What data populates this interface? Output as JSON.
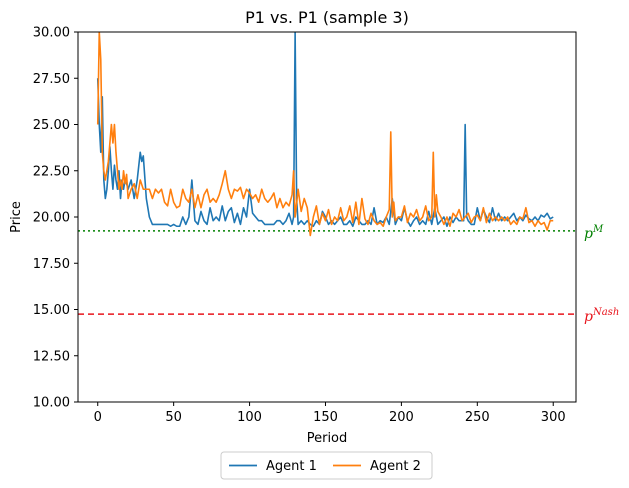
{
  "chart_data": {
    "type": "line",
    "title": "P1 vs. P1 (sample 3)",
    "xlabel": "Period",
    "ylabel": "Price",
    "xlim": [
      -13,
      315
    ],
    "ylim": [
      10,
      30
    ],
    "xticks": [
      0,
      50,
      100,
      150,
      200,
      250,
      300
    ],
    "yticks": [
      10.0,
      12.5,
      15.0,
      17.5,
      20.0,
      22.5,
      25.0,
      27.5,
      30.0
    ],
    "ytick_labels": [
      "10.00",
      "12.50",
      "15.00",
      "17.50",
      "20.00",
      "22.50",
      "25.00",
      "27.50",
      "30.00"
    ],
    "grid": false,
    "legend_position": "bottom-center outside",
    "reference_lines": [
      {
        "label_base": "p",
        "label_sup": "M",
        "y": 19.25,
        "color": "#008000",
        "style": "dotted"
      },
      {
        "label_base": "p",
        "label_sup": "Nash",
        "y": 14.75,
        "color": "#e8141c",
        "style": "dashed"
      }
    ],
    "series": [
      {
        "name": "Agent 1",
        "color": "#1f77b4",
        "x": [
          0,
          1,
          2,
          3,
          4,
          5,
          6,
          7,
          8,
          9,
          10,
          11,
          12,
          13,
          14,
          15,
          16,
          17,
          18,
          19,
          20,
          22,
          24,
          26,
          28,
          29,
          30,
          32,
          34,
          36,
          38,
          40,
          42,
          44,
          46,
          48,
          50,
          52,
          54,
          56,
          58,
          60,
          62,
          64,
          66,
          68,
          70,
          72,
          74,
          76,
          78,
          80,
          82,
          84,
          86,
          88,
          90,
          92,
          94,
          96,
          98,
          100,
          102,
          104,
          106,
          108,
          110,
          112,
          114,
          116,
          118,
          120,
          122,
          124,
          126,
          128,
          129,
          130,
          131,
          132,
          134,
          136,
          138,
          140,
          142,
          144,
          146,
          148,
          150,
          152,
          154,
          156,
          158,
          160,
          162,
          164,
          166,
          168,
          170,
          172,
          174,
          176,
          178,
          180,
          182,
          184,
          186,
          188,
          190,
          192,
          194,
          196,
          198,
          200,
          202,
          204,
          206,
          208,
          210,
          212,
          214,
          216,
          218,
          220,
          222,
          224,
          226,
          228,
          230,
          232,
          234,
          236,
          238,
          240,
          241,
          242,
          243,
          244,
          246,
          248,
          250,
          252,
          254,
          256,
          258,
          260,
          262,
          264,
          266,
          268,
          270,
          272,
          274,
          276,
          278,
          280,
          282,
          284,
          286,
          288,
          290,
          292,
          294,
          296,
          298,
          300
        ],
        "values": [
          27.5,
          25.0,
          23.5,
          26.5,
          22.0,
          21.0,
          21.5,
          22.5,
          23.8,
          22.5,
          21.5,
          22.8,
          22.0,
          21.5,
          22.5,
          21.0,
          22.0,
          21.5,
          22.0,
          21.8,
          21.5,
          22.0,
          21.0,
          22.0,
          23.5,
          23.0,
          23.3,
          21.0,
          20.0,
          19.6,
          19.6,
          19.6,
          19.6,
          19.6,
          19.6,
          19.5,
          19.6,
          19.5,
          19.5,
          20.0,
          19.6,
          20.0,
          22.0,
          19.8,
          19.6,
          20.3,
          19.8,
          19.6,
          20.5,
          19.8,
          20.0,
          19.8,
          20.6,
          19.8,
          20.3,
          20.5,
          19.7,
          20.2,
          19.6,
          20.5,
          20.0,
          21.5,
          20.2,
          20.0,
          19.8,
          19.8,
          19.6,
          19.6,
          19.6,
          19.6,
          19.8,
          19.8,
          19.6,
          19.8,
          20.2,
          19.6,
          20.0,
          30.0,
          21.0,
          19.6,
          19.8,
          19.6,
          19.8,
          19.6,
          19.5,
          19.8,
          19.6,
          20.3,
          20.0,
          19.6,
          19.8,
          19.6,
          19.8,
          20.0,
          19.6,
          19.6,
          19.8,
          19.5,
          20.0,
          19.8,
          19.6,
          19.6,
          19.8,
          19.6,
          20.5,
          19.6,
          19.8,
          19.7,
          20.0,
          19.6,
          21.0,
          19.6,
          20.0,
          19.8,
          20.5,
          19.8,
          19.5,
          19.8,
          20.0,
          19.6,
          19.8,
          19.6,
          20.3,
          19.6,
          20.5,
          19.6,
          19.8,
          20.0,
          19.5,
          20.0,
          19.7,
          20.0,
          19.8,
          19.8,
          19.8,
          25.0,
          20.0,
          19.8,
          19.6,
          19.6,
          20.5,
          19.8,
          20.4,
          20.0,
          19.7,
          20.5,
          19.8,
          20.2,
          19.8,
          20.0,
          19.8,
          20.0,
          20.2,
          19.8,
          20.0,
          19.8,
          20.1,
          19.9,
          19.8,
          20.0,
          19.8,
          20.1,
          20.0,
          20.2,
          19.9,
          20.0
        ]
      },
      {
        "name": "Agent 2",
        "color": "#ff7f0e",
        "x": [
          0,
          1,
          2,
          3,
          4,
          5,
          6,
          7,
          8,
          9,
          10,
          11,
          12,
          13,
          14,
          15,
          16,
          17,
          18,
          19,
          20,
          22,
          24,
          26,
          28,
          30,
          32,
          34,
          36,
          38,
          40,
          42,
          44,
          46,
          48,
          50,
          52,
          54,
          56,
          58,
          60,
          62,
          64,
          66,
          68,
          70,
          72,
          74,
          76,
          78,
          80,
          82,
          84,
          86,
          88,
          90,
          92,
          94,
          96,
          98,
          100,
          102,
          104,
          106,
          108,
          110,
          112,
          114,
          116,
          118,
          120,
          122,
          124,
          126,
          128,
          129,
          130,
          132,
          134,
          136,
          138,
          140,
          142,
          144,
          146,
          148,
          150,
          152,
          154,
          156,
          158,
          160,
          162,
          164,
          166,
          168,
          170,
          172,
          174,
          176,
          178,
          180,
          182,
          184,
          186,
          188,
          190,
          192,
          193,
          194,
          195,
          196,
          198,
          200,
          202,
          204,
          206,
          208,
          210,
          212,
          214,
          216,
          218,
          220,
          221,
          222,
          223,
          224,
          226,
          228,
          230,
          232,
          234,
          236,
          238,
          240,
          242,
          244,
          246,
          248,
          250,
          252,
          254,
          256,
          258,
          260,
          262,
          264,
          266,
          268,
          270,
          272,
          274,
          276,
          278,
          280,
          282,
          284,
          286,
          288,
          290,
          292,
          294,
          296,
          298,
          300
        ],
        "values": [
          25.0,
          30.0,
          28.5,
          23.5,
          22.5,
          22.0,
          22.5,
          23.0,
          24.0,
          25.0,
          24.0,
          25.0,
          23.5,
          22.5,
          21.5,
          22.0,
          21.5,
          22.5,
          21.8,
          22.3,
          21.0,
          21.5,
          21.8,
          21.0,
          22.0,
          21.5,
          21.5,
          21.5,
          21.0,
          21.5,
          21.3,
          21.5,
          20.8,
          20.6,
          21.5,
          20.8,
          20.5,
          20.6,
          21.5,
          21.0,
          20.8,
          21.5,
          20.5,
          21.2,
          20.5,
          21.2,
          21.5,
          20.8,
          21.0,
          20.8,
          21.2,
          21.8,
          22.5,
          21.5,
          21.0,
          21.5,
          21.4,
          21.6,
          21.0,
          21.5,
          21.3,
          21.0,
          21.2,
          20.8,
          21.5,
          21.0,
          20.8,
          21.0,
          21.3,
          20.5,
          21.0,
          20.5,
          20.8,
          20.6,
          21.2,
          22.5,
          20.0,
          21.5,
          20.3,
          21.0,
          20.5,
          19.0,
          20.0,
          20.6,
          19.6,
          20.2,
          19.8,
          20.4,
          19.6,
          20.0,
          19.8,
          20.5,
          19.8,
          20.0,
          20.6,
          19.7,
          20.8,
          19.6,
          21.0,
          19.9,
          19.6,
          20.2,
          19.8,
          19.6,
          19.7,
          19.5,
          20.0,
          20.4,
          24.6,
          20.0,
          20.8,
          19.8,
          20.0,
          20.0,
          20.6,
          19.7,
          20.2,
          20.0,
          20.4,
          19.8,
          20.0,
          20.6,
          19.8,
          20.0,
          23.5,
          20.0,
          21.2,
          20.3,
          20.0,
          19.6,
          20.0,
          19.5,
          20.2,
          20.0,
          20.4,
          19.8,
          20.0,
          20.2,
          19.7,
          20.0,
          20.1,
          19.8,
          20.5,
          19.7,
          20.2,
          19.8,
          20.0,
          19.8,
          20.0,
          19.8,
          20.0,
          19.6,
          19.8,
          19.6,
          20.0,
          19.9,
          20.5,
          19.7,
          19.8,
          19.5,
          19.8,
          19.6,
          19.7,
          19.3,
          19.8,
          19.8
        ]
      }
    ]
  }
}
